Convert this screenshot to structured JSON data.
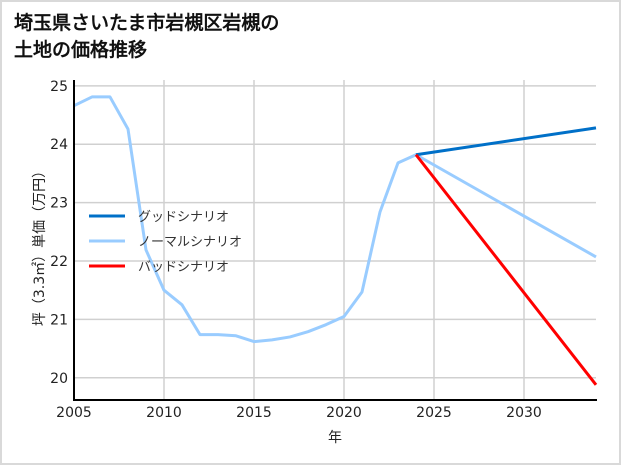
{
  "chart_data": {
    "type": "line",
    "title": [
      "埼玉県さいたま市岩槻区岩槻の",
      "土地の価格推移"
    ],
    "xlabel": "年",
    "ylabel": "坪（3.3㎡）単価（万円）",
    "xlim": [
      2005,
      2034
    ],
    "ylim": [
      19.62,
      25.1
    ],
    "xticks": [
      2005,
      2010,
      2015,
      2020,
      2025,
      2030
    ],
    "yticks": [
      20,
      21,
      22,
      23,
      24,
      25
    ],
    "grid": true,
    "legend_position": "center-left",
    "series": [
      {
        "name": "グッドシナリオ",
        "color": "#0070c8",
        "x": [
          2024,
          2034
        ],
        "y": [
          23.82,
          24.28
        ]
      },
      {
        "name": "ノーマルシナリオ",
        "color": "#99ccff",
        "x": [
          2005,
          2006,
          2007,
          2008,
          2009,
          2010,
          2011,
          2012,
          2013,
          2014,
          2015,
          2016,
          2017,
          2018,
          2019,
          2020,
          2021,
          2022,
          2023,
          2024,
          2034
        ],
        "y": [
          24.66,
          24.81,
          24.81,
          24.26,
          22.19,
          21.5,
          21.25,
          20.74,
          20.74,
          20.72,
          20.62,
          20.65,
          20.7,
          20.79,
          20.91,
          21.05,
          21.47,
          22.84,
          23.68,
          23.82,
          22.07
        ]
      },
      {
        "name": "バッドシナリオ",
        "color": "#ff0000",
        "x": [
          2024,
          2034
        ],
        "y": [
          23.82,
          19.88
        ]
      }
    ]
  }
}
